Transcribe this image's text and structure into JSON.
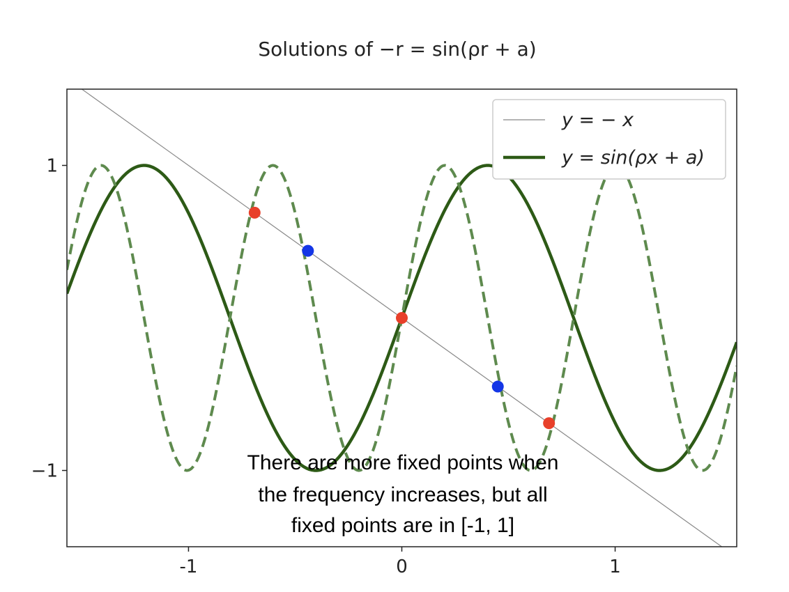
{
  "chart_data": {
    "type": "line",
    "title": "Solutions of −r = sin(ρr + a)",
    "xlabel": "",
    "ylabel": "",
    "xlim": [
      -1.57,
      1.57
    ],
    "ylim": [
      -1.5,
      1.5
    ],
    "xticks": [
      -1,
      0,
      1
    ],
    "xtick_labels": [
      "-1",
      "0",
      "1"
    ],
    "yticks": [
      1,
      -1
    ],
    "ytick_labels": [
      "1",
      "−1"
    ],
    "grid": false,
    "legend": {
      "position": "top-right",
      "entries": [
        {
          "label": "y = − x",
          "color": "#888888",
          "style": "thin-solid"
        },
        {
          "label": "y = sin(ρx + a)",
          "color": "#2d5a16",
          "style": "thick-solid"
        }
      ]
    },
    "series": [
      {
        "name": "y = − x",
        "kind": "line",
        "slope": -1,
        "intercept": 0,
        "color": "#888888"
      },
      {
        "name": "y = sin(ρx + a)",
        "kind": "sine",
        "rho": 3.9,
        "a": 0,
        "color": "#2d5a16",
        "dash": false
      },
      {
        "kind": "sine",
        "rho": 7.8,
        "a": 0,
        "color": "#5e8a4e",
        "dash": true
      }
    ],
    "fixed_points": [
      {
        "x": -0.69,
        "y": 0.69,
        "color": "#e8402a"
      },
      {
        "x": -0.44,
        "y": 0.44,
        "color": "#1436e6"
      },
      {
        "x": 0.0,
        "y": 0.0,
        "color": "#e8402a"
      },
      {
        "x": 0.45,
        "y": -0.45,
        "color": "#1436e6"
      },
      {
        "x": 0.69,
        "y": -0.69,
        "color": "#e8402a"
      }
    ],
    "annotation": [
      "There are more fixed points when",
      "the frequency increases, but all",
      "fixed points are in [-1, 1]"
    ]
  }
}
